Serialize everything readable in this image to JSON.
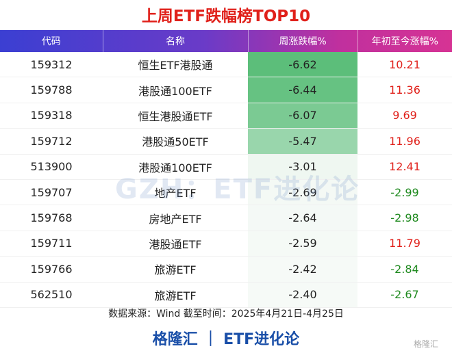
{
  "title": "上周ETF跌幅榜TOP10",
  "table": {
    "header": [
      "代码",
      "名称",
      "周涨跌幅%",
      "年初至今涨幅%"
    ],
    "rows": [
      [
        "159312",
        "恒生ETF港股通",
        "-6.62",
        "10.21"
      ],
      [
        "159788",
        "港股通100ETF",
        "-6.44",
        "11.36"
      ],
      [
        "159318",
        "恒生港股通ETF",
        "-6.07",
        "9.69"
      ],
      [
        "159712",
        "港股通50ETF",
        "-5.47",
        "11.96"
      ],
      [
        "513900",
        "港股通100ETF",
        "-3.01",
        "12.41"
      ],
      [
        "159707",
        "地产ETF",
        "-2.69",
        "-2.99"
      ],
      [
        "159768",
        "房地产ETF",
        "-2.64",
        "-2.98"
      ],
      [
        "159711",
        "港股通ETF",
        "-2.59",
        "11.79"
      ],
      [
        "159766",
        "旅游ETF",
        "-2.42",
        "-2.84"
      ],
      [
        "562510",
        "旅游ETF",
        "-2.40",
        "-2.67"
      ]
    ]
  },
  "watermark": "GZH：ETF进化论",
  "note": "数据来源：Wind 截至时间：2025年4月21日-4月25日",
  "footer": "格隆汇 ｜ ETF进化论",
  "logo": "格隆汇"
}
